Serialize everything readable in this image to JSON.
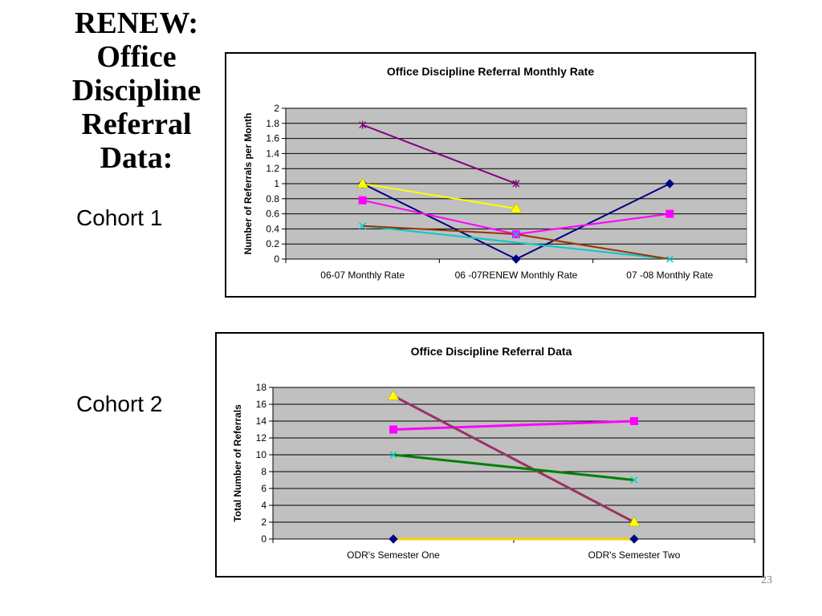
{
  "slide": {
    "title_lines": [
      "RENEW:",
      "Office",
      "Discipline",
      "Referral",
      "Data:"
    ],
    "cohort1_label": "Cohort 1",
    "cohort2_label": "Cohort 2",
    "page_number": "23"
  },
  "chart_data": [
    {
      "type": "line",
      "title": "Office Discipline Referral Monthly Rate",
      "xlabel": "",
      "ylabel": "Number of Referrals per Month",
      "categories": [
        "06-07 Monthly Rate",
        "06 -07RENEW Monthly Rate",
        "07 -08 Monthly Rate"
      ],
      "ylim": [
        0,
        2
      ],
      "yticks": [
        "0",
        "0.2",
        "0.4",
        "0.6",
        "0.8",
        "1",
        "1.2",
        "1.4",
        "1.6",
        "1.8",
        "2"
      ],
      "grid": true,
      "legend": "none",
      "plot_bg": "#c0c0c0",
      "series": [
        {
          "values": [
            1.0,
            0.0,
            1.0
          ],
          "color": "#000080",
          "marker": "diamond"
        },
        {
          "values": [
            0.78,
            0.33,
            0.6
          ],
          "color": "#ff00ff",
          "marker": "square"
        },
        {
          "values": [
            1.0,
            0.67,
            null
          ],
          "color": "#ffff00",
          "marker": "triangle"
        },
        {
          "values": [
            0.44,
            null,
            0.0
          ],
          "color": "#00cccc",
          "marker": "x"
        },
        {
          "values": [
            1.78,
            1.0,
            null
          ],
          "color": "#800080",
          "marker": "star"
        },
        {
          "values": [
            0.44,
            0.33,
            0.0
          ],
          "color": "#993300",
          "marker": "none"
        },
        {
          "values": [
            null,
            0.33,
            null
          ],
          "color": "#00cccc",
          "marker": "x"
        }
      ]
    },
    {
      "type": "line",
      "title": "Office Discipline Referral Data",
      "xlabel": "",
      "ylabel": "Total Number of Referrals",
      "categories": [
        "ODR's Semester One",
        "ODR's Semester Two"
      ],
      "ylim": [
        0,
        18
      ],
      "yticks": [
        "0",
        "2",
        "4",
        "6",
        "8",
        "10",
        "12",
        "14",
        "16",
        "18"
      ],
      "grid": true,
      "legend": "none",
      "plot_bg": "#c0c0c0",
      "series": [
        {
          "values": [
            0,
            0
          ],
          "color": "#ffcc00",
          "marker": "diamond",
          "marker_color": "#000080"
        },
        {
          "values": [
            13,
            14
          ],
          "color": "#ff00ff",
          "marker": "square"
        },
        {
          "values": [
            17,
            2
          ],
          "color": "#993366",
          "marker": "triangle",
          "marker_color": "#ffff00"
        },
        {
          "values": [
            10,
            7
          ],
          "color": "#008000",
          "marker": "x",
          "marker_color": "#00cccc"
        }
      ]
    }
  ]
}
